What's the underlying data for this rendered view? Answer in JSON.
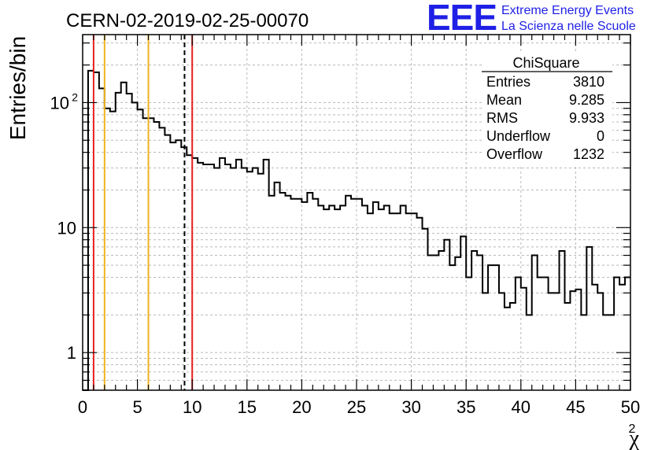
{
  "logo": {
    "mark": "EEE",
    "line1": "Extreme Energy Events",
    "line2": "La Scienza nelle Scuole",
    "color": "#1f1fe6"
  },
  "chart_data": {
    "type": "histogram",
    "title": "CERN-02-2019-02-25-00070",
    "xlabel": "χ²",
    "ylabel": "Entries/bin",
    "xlim": [
      0,
      50
    ],
    "ylim": [
      0.5,
      350
    ],
    "yscale": "log",
    "grid": true,
    "bin_width": 0.5,
    "x_ticks": [
      "0",
      "5",
      "10",
      "15",
      "20",
      "25",
      "30",
      "35",
      "40",
      "45",
      "50"
    ],
    "y_ticks": [
      {
        "value": 1,
        "label": "1"
      },
      {
        "value": 10,
        "label": "10"
      },
      {
        "value": 100,
        "label": "10^2"
      }
    ],
    "bins_start": 0,
    "values": [
      0,
      180,
      175,
      130,
      90,
      85,
      120,
      145,
      118,
      100,
      88,
      75,
      75,
      70,
      63,
      55,
      48,
      50,
      44,
      38,
      36,
      33,
      32,
      32,
      30,
      36,
      32,
      30,
      35,
      30,
      28,
      30,
      27,
      35,
      18,
      23,
      19,
      18,
      17,
      17,
      16,
      19,
      17,
      15,
      14,
      15,
      14,
      15,
      18,
      17,
      17,
      15,
      13,
      16,
      14,
      15,
      13,
      13,
      15,
      13,
      13,
      12,
      9.8,
      6,
      6,
      6.5,
      8,
      5,
      5.8,
      8.5,
      4,
      6.5,
      6,
      3,
      5,
      5,
      3,
      2.3,
      2.5,
      4,
      3.3,
      2,
      6,
      4,
      4,
      3,
      3,
      6.5,
      2.5,
      3.1,
      3.2,
      2,
      7,
      3.5,
      3,
      2,
      2,
      4,
      3.5,
      4
    ],
    "vlines": [
      {
        "x": 1.0,
        "color": "#e8211f",
        "style": "solid"
      },
      {
        "x": 2.0,
        "color": "#f0b41e",
        "style": "solid"
      },
      {
        "x": 6.0,
        "color": "#f0b41e",
        "style": "solid"
      },
      {
        "x": 9.3,
        "color": "#000000",
        "style": "dashed"
      },
      {
        "x": 10.0,
        "color": "#e8211f",
        "style": "solid"
      }
    ],
    "stats": {
      "title": "ChiSquare",
      "rows": [
        {
          "label": "Entries",
          "value": "3810"
        },
        {
          "label": "Mean",
          "value": "9.285"
        },
        {
          "label": "RMS",
          "value": "9.933"
        },
        {
          "label": "Underflow",
          "value": "0"
        },
        {
          "label": "Overflow",
          "value": "1232"
        }
      ],
      "placement": "top-right"
    }
  }
}
